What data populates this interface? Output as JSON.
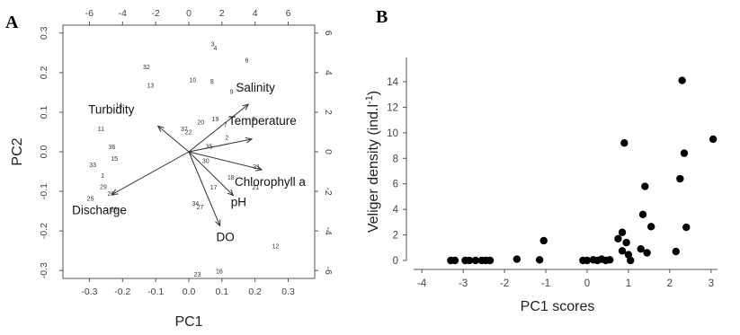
{
  "chart_data": [
    {
      "panel": "A",
      "type": "scatter",
      "subtype": "biplot",
      "xlabel": "PC1",
      "ylabel": "PC2",
      "xlim": [
        -0.38,
        0.38
      ],
      "ylim": [
        -0.32,
        0.32
      ],
      "x_ticks": [
        "-0.3",
        "-0.2",
        "-0.1",
        "0.0",
        "0.1",
        "0.2",
        "0.3"
      ],
      "y_ticks": [
        "-0.3",
        "-0.2",
        "-0.1",
        "0.0",
        "0.1",
        "0.2",
        "0.3"
      ],
      "top_ticks": [
        "-6",
        "-4",
        "-2",
        "0",
        "2",
        "4",
        "6"
      ],
      "right_ticks": [
        "-6",
        "-4",
        "-2",
        "0",
        "2",
        "4",
        "6"
      ],
      "grid": false,
      "observations": [
        {
          "label": "3",
          "x": 0.072,
          "y": 0.272
        },
        {
          "label": "4",
          "x": 0.08,
          "y": 0.262
        },
        {
          "label": "6",
          "x": 0.175,
          "y": 0.232
        },
        {
          "label": "32",
          "x": -0.128,
          "y": 0.215
        },
        {
          "label": "10",
          "x": 0.012,
          "y": 0.182
        },
        {
          "label": "8",
          "x": 0.07,
          "y": 0.178
        },
        {
          "label": "13",
          "x": -0.116,
          "y": 0.168
        },
        {
          "label": "9",
          "x": 0.129,
          "y": 0.152
        },
        {
          "label": "14",
          "x": -0.211,
          "y": 0.118
        },
        {
          "label": "5",
          "x": 0.197,
          "y": 0.083
        },
        {
          "label": "19",
          "x": 0.08,
          "y": 0.083
        },
        {
          "label": "20",
          "x": 0.036,
          "y": 0.075
        },
        {
          "label": "7",
          "x": 0.11,
          "y": 0.068
        },
        {
          "label": "37",
          "x": -0.014,
          "y": 0.058
        },
        {
          "label": "22",
          "x": -0.001,
          "y": 0.05
        },
        {
          "label": "11",
          "x": -0.265,
          "y": 0.058
        },
        {
          "label": "2",
          "x": 0.115,
          "y": 0.036
        },
        {
          "label": "35",
          "x": 0.061,
          "y": 0.014
        },
        {
          "label": "36",
          "x": -0.232,
          "y": 0.013
        },
        {
          "label": "15",
          "x": -0.225,
          "y": -0.017
        },
        {
          "label": "30",
          "x": 0.051,
          "y": -0.023
        },
        {
          "label": "33",
          "x": -0.29,
          "y": -0.033
        },
        {
          "label": "31",
          "x": 0.204,
          "y": -0.038
        },
        {
          "label": "1",
          "x": -0.26,
          "y": -0.06
        },
        {
          "label": "18",
          "x": 0.127,
          "y": -0.065
        },
        {
          "label": "29",
          "x": -0.258,
          "y": -0.089
        },
        {
          "label": "17",
          "x": 0.075,
          "y": -0.09
        },
        {
          "label": "21",
          "x": 0.202,
          "y": -0.09
        },
        {
          "label": "26",
          "x": -0.235,
          "y": -0.106
        },
        {
          "label": "25",
          "x": -0.297,
          "y": -0.118
        },
        {
          "label": "28",
          "x": -0.226,
          "y": -0.145
        },
        {
          "label": "34",
          "x": 0.02,
          "y": -0.13
        },
        {
          "label": "27",
          "x": 0.034,
          "y": -0.14
        },
        {
          "label": "12",
          "x": 0.262,
          "y": -0.238
        },
        {
          "label": "23",
          "x": 0.026,
          "y": -0.31
        },
        {
          "label": "16",
          "x": 0.092,
          "y": -0.302
        }
      ],
      "variables": [
        {
          "name": "Salinity",
          "x": 0.18,
          "y": 0.12
        },
        {
          "name": "Temperature",
          "x": 0.19,
          "y": 0.032
        },
        {
          "name": "Turbidity",
          "x": -0.093,
          "y": 0.065
        },
        {
          "name": "Chlorophyll a",
          "x": 0.22,
          "y": -0.045
        },
        {
          "name": "pH",
          "x": 0.134,
          "y": -0.11
        },
        {
          "name": "DO",
          "x": 0.094,
          "y": -0.187
        },
        {
          "name": "Discharge",
          "x": -0.232,
          "y": -0.108
        }
      ]
    },
    {
      "panel": "B",
      "type": "scatter",
      "xlabel": "PC1 scores",
      "ylabel": "Veliger density (ind.l-1)",
      "ylabel_main": "Veliger density (ind.l",
      "ylabel_sup": "-1",
      "ylabel_end": ")",
      "xlim": [
        -4.2,
        3.2
      ],
      "ylim": [
        -0.4,
        14.8
      ],
      "x_ticks": [
        "-4",
        "-3",
        "-2",
        "-1",
        "0",
        "1",
        "2",
        "3"
      ],
      "y_ticks": [
        "0",
        "2",
        "4",
        "6",
        "8",
        "10",
        "12",
        "14"
      ],
      "grid": false,
      "points": [
        {
          "x": -3.3,
          "y": 0.0
        },
        {
          "x": -3.2,
          "y": 0.0
        },
        {
          "x": -2.95,
          "y": 0.0
        },
        {
          "x": -2.85,
          "y": 0.0
        },
        {
          "x": -2.7,
          "y": 0.0
        },
        {
          "x": -2.55,
          "y": 0.0
        },
        {
          "x": -2.45,
          "y": 0.0
        },
        {
          "x": -2.35,
          "y": 0.0
        },
        {
          "x": -1.7,
          "y": 0.1
        },
        {
          "x": -1.15,
          "y": 0.05
        },
        {
          "x": -1.05,
          "y": 1.55
        },
        {
          "x": -0.1,
          "y": 0.0
        },
        {
          "x": 0.0,
          "y": 0.0
        },
        {
          "x": 0.15,
          "y": 0.05
        },
        {
          "x": 0.25,
          "y": 0.0
        },
        {
          "x": 0.35,
          "y": 0.1
        },
        {
          "x": 0.45,
          "y": 0.0
        },
        {
          "x": 0.55,
          "y": 0.05
        },
        {
          "x": 0.75,
          "y": 1.7
        },
        {
          "x": 0.85,
          "y": 2.2
        },
        {
          "x": 0.85,
          "y": 0.75
        },
        {
          "x": 0.9,
          "y": 9.2
        },
        {
          "x": 0.95,
          "y": 1.4
        },
        {
          "x": 1.0,
          "y": 0.45
        },
        {
          "x": 1.05,
          "y": 0.0
        },
        {
          "x": 1.3,
          "y": 0.9
        },
        {
          "x": 1.35,
          "y": 3.6
        },
        {
          "x": 1.4,
          "y": 5.8
        },
        {
          "x": 1.45,
          "y": 0.6
        },
        {
          "x": 1.55,
          "y": 2.65
        },
        {
          "x": 2.15,
          "y": 0.7
        },
        {
          "x": 2.25,
          "y": 6.4
        },
        {
          "x": 2.3,
          "y": 14.1
        },
        {
          "x": 2.35,
          "y": 8.4
        },
        {
          "x": 2.4,
          "y": 2.6
        },
        {
          "x": 3.05,
          "y": 9.5
        }
      ]
    }
  ]
}
